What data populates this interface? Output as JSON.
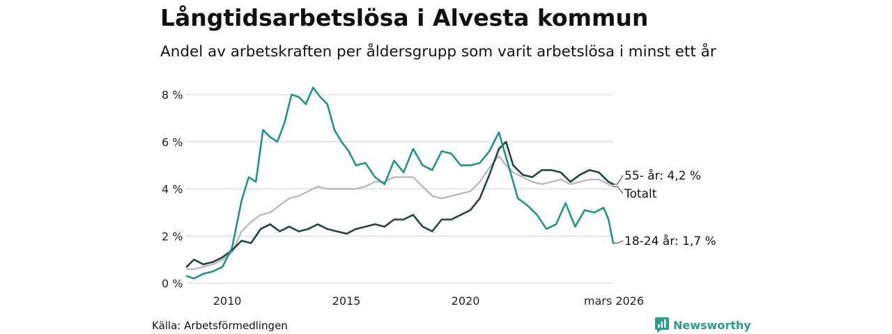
{
  "title": "Långtidsarbetslösa i Alvesta kommun",
  "subtitle": "Andel av arbetskraften per åldersgrupp som varit arbetslösa i minst ett år",
  "source": "Källa: Arbetsförmedlingen",
  "brand": "Newsworthy",
  "colors": {
    "young": "#1f9483",
    "old": "#20453f",
    "total": "#b9b9c4",
    "grid": "#dcdcdc",
    "brand": "#2a9d8f"
  },
  "chart_data": {
    "type": "line",
    "title": "Långtidsarbetslösa i Alvesta kommun",
    "xlabel": "",
    "ylabel": "",
    "xlim": [
      2008.3,
      2026.2
    ],
    "ylim": [
      0,
      8
    ],
    "y_ticks": [
      0,
      2,
      4,
      6,
      8
    ],
    "y_tick_labels": [
      "0 %",
      "2 %",
      "4 %",
      "6 %",
      "8 %"
    ],
    "x_ticks": [
      2010,
      2015,
      2020,
      2026.2
    ],
    "x_tick_labels": [
      "2010",
      "2015",
      "2020",
      "mars 2026"
    ],
    "series": [
      {
        "name": "Totalt",
        "key": "total",
        "end_label": "Totalt",
        "x": [
          2008.3,
          2008.6,
          2009.0,
          2009.4,
          2009.8,
          2010.2,
          2010.6,
          2011.0,
          2011.4,
          2011.8,
          2012.2,
          2012.6,
          2013.0,
          2013.4,
          2013.8,
          2014.2,
          2014.6,
          2015.0,
          2015.4,
          2015.8,
          2016.2,
          2016.6,
          2017.0,
          2017.4,
          2017.8,
          2018.2,
          2018.6,
          2019.0,
          2019.4,
          2019.8,
          2020.2,
          2020.6,
          2021.0,
          2021.4,
          2021.7,
          2022.0,
          2022.4,
          2022.8,
          2023.2,
          2023.6,
          2024.0,
          2024.4,
          2024.8,
          2025.2,
          2025.6,
          2026.0,
          2026.2
        ],
        "y": [
          0.6,
          0.6,
          0.7,
          0.8,
          1.0,
          1.3,
          2.2,
          2.6,
          2.9,
          3.0,
          3.3,
          3.6,
          3.7,
          3.9,
          4.1,
          4.0,
          4.0,
          4.0,
          4.0,
          4.1,
          4.3,
          4.3,
          4.5,
          4.5,
          4.5,
          4.1,
          3.7,
          3.6,
          3.7,
          3.8,
          3.9,
          4.3,
          4.9,
          5.4,
          5.0,
          4.7,
          4.5,
          4.3,
          4.2,
          4.3,
          4.4,
          4.2,
          4.3,
          4.4,
          4.4,
          4.2,
          4.1
        ]
      },
      {
        "name": "55- år",
        "key": "old",
        "end_label": "55- år: 4,2 %",
        "x": [
          2008.3,
          2008.6,
          2009.0,
          2009.4,
          2009.8,
          2010.2,
          2010.6,
          2011.0,
          2011.4,
          2011.8,
          2012.2,
          2012.6,
          2013.0,
          2013.4,
          2013.8,
          2014.2,
          2014.6,
          2015.0,
          2015.4,
          2015.8,
          2016.2,
          2016.6,
          2017.0,
          2017.4,
          2017.8,
          2018.2,
          2018.6,
          2019.0,
          2019.4,
          2019.8,
          2020.2,
          2020.6,
          2021.0,
          2021.4,
          2021.7,
          2022.0,
          2022.4,
          2022.8,
          2023.2,
          2023.6,
          2024.0,
          2024.4,
          2024.8,
          2025.2,
          2025.6,
          2026.0,
          2026.2
        ],
        "y": [
          0.7,
          1.0,
          0.8,
          0.9,
          1.1,
          1.4,
          1.8,
          1.7,
          2.3,
          2.5,
          2.2,
          2.4,
          2.2,
          2.3,
          2.5,
          2.3,
          2.2,
          2.1,
          2.3,
          2.4,
          2.5,
          2.4,
          2.7,
          2.7,
          2.9,
          2.4,
          2.2,
          2.7,
          2.7,
          2.9,
          3.1,
          3.6,
          4.6,
          5.7,
          6.0,
          5.0,
          4.6,
          4.5,
          4.8,
          4.8,
          4.7,
          4.3,
          4.6,
          4.8,
          4.7,
          4.3,
          4.2
        ]
      },
      {
        "name": "18-24 år",
        "key": "young",
        "end_label": "18-24 år: 1,7 %",
        "x": [
          2008.3,
          2008.6,
          2009.0,
          2009.4,
          2009.8,
          2010.2,
          2010.6,
          2010.9,
          2011.2,
          2011.5,
          2011.8,
          2012.1,
          2012.4,
          2012.7,
          2013.0,
          2013.3,
          2013.6,
          2013.9,
          2014.2,
          2014.5,
          2014.8,
          2015.1,
          2015.4,
          2015.8,
          2016.2,
          2016.6,
          2017.0,
          2017.4,
          2017.8,
          2018.2,
          2018.6,
          2019.0,
          2019.4,
          2019.8,
          2020.2,
          2020.6,
          2021.0,
          2021.4,
          2021.8,
          2022.2,
          2022.6,
          2023.0,
          2023.4,
          2023.8,
          2024.2,
          2024.6,
          2025.0,
          2025.4,
          2025.8,
          2026.0,
          2026.2
        ],
        "y": [
          0.3,
          0.2,
          0.4,
          0.5,
          0.7,
          1.5,
          3.5,
          4.5,
          4.3,
          6.5,
          6.2,
          6.0,
          6.8,
          8.0,
          7.9,
          7.6,
          8.3,
          7.9,
          7.6,
          6.5,
          6.0,
          5.6,
          5.0,
          5.1,
          4.5,
          4.2,
          5.2,
          4.7,
          5.7,
          5.0,
          4.8,
          5.6,
          5.5,
          5.0,
          5.0,
          5.1,
          5.6,
          6.4,
          5.0,
          3.6,
          3.3,
          2.9,
          2.3,
          2.5,
          3.4,
          2.4,
          3.1,
          3.0,
          3.2,
          2.7,
          1.7
        ]
      }
    ]
  }
}
